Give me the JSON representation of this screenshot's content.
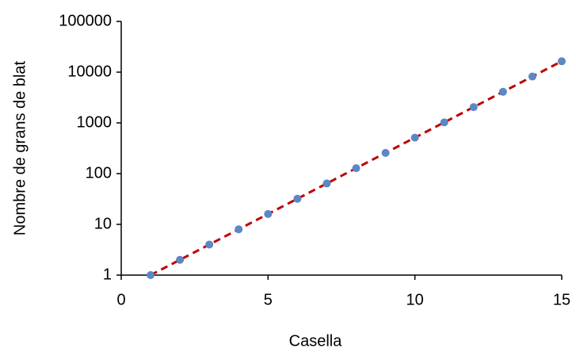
{
  "chart_data": {
    "type": "scatter",
    "x_label": "Casella",
    "y_label": "Nombre de grans de blat",
    "x": [
      1,
      2,
      3,
      4,
      5,
      6,
      7,
      8,
      9,
      10,
      11,
      12,
      13,
      14,
      15
    ],
    "values": [
      1,
      2,
      4,
      8,
      16,
      32,
      64,
      128,
      256,
      512,
      1024,
      2048,
      4096,
      8192,
      16384
    ],
    "color": "#5b87c5",
    "trendline": {
      "x": [
        1,
        15
      ],
      "values": [
        1,
        16384
      ],
      "color": "#c00000",
      "dashed": true
    },
    "xlim": [
      0,
      15
    ],
    "xticks": [
      0,
      5,
      10,
      15
    ],
    "ylim": [
      1,
      100000
    ],
    "yticks": [
      1,
      10,
      100,
      1000,
      10000,
      100000
    ],
    "log_y": true,
    "grid": false
  }
}
